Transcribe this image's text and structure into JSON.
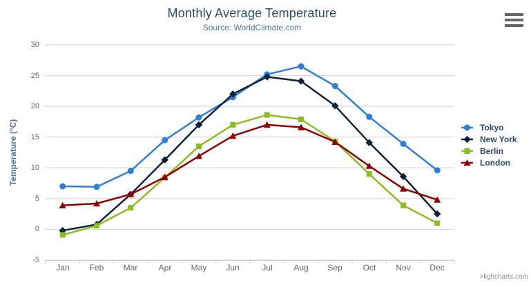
{
  "chart_data": {
    "type": "line",
    "title": "Monthly Average Temperature",
    "subtitle": "Source: WorldClimate.com",
    "xlabel": "",
    "ylabel": "Temperature (°C)",
    "ylim": [
      -5,
      30
    ],
    "yticks": [
      -5,
      0,
      5,
      10,
      15,
      20,
      25,
      30
    ],
    "grid": true,
    "legend_position": "right",
    "categories": [
      "Jan",
      "Feb",
      "Mar",
      "Apr",
      "May",
      "Jun",
      "Jul",
      "Aug",
      "Sep",
      "Oct",
      "Nov",
      "Dec"
    ],
    "series": [
      {
        "name": "Tokyo",
        "color": "#2f7ed8",
        "marker": "circle",
        "values": [
          7.0,
          6.9,
          9.5,
          14.5,
          18.2,
          21.5,
          25.2,
          26.5,
          23.3,
          18.3,
          13.9,
          9.6
        ]
      },
      {
        "name": "New York",
        "color": "#0d233a",
        "marker": "diamond",
        "values": [
          -0.2,
          0.8,
          5.7,
          11.3,
          17.0,
          22.0,
          24.8,
          24.1,
          20.1,
          14.1,
          8.6,
          2.5
        ]
      },
      {
        "name": "Berlin",
        "color": "#8bbc21",
        "marker": "square",
        "values": [
          -0.9,
          0.6,
          3.5,
          8.4,
          13.5,
          17.0,
          18.6,
          17.9,
          14.3,
          9.0,
          3.9,
          1.0
        ]
      },
      {
        "name": "London",
        "color": "#910000",
        "marker": "triangle",
        "values": [
          3.9,
          4.2,
          5.7,
          8.5,
          11.9,
          15.2,
          17.0,
          16.6,
          14.2,
          10.3,
          6.6,
          4.8
        ]
      }
    ]
  },
  "credits": "Highcharts.com",
  "icons": {
    "menu": "hamburger-icon"
  },
  "colors": {
    "background": "#ffffff",
    "grid": "#d0d0d0",
    "axis_line": "#c0d0e0",
    "tick_label": "#666666",
    "title": "#274b6d",
    "subtitle": "#4d759e",
    "y_axis_title": "#4572a7",
    "legend_text": "#274b6d",
    "credits": "#909090",
    "menu_icon": "#666666"
  }
}
